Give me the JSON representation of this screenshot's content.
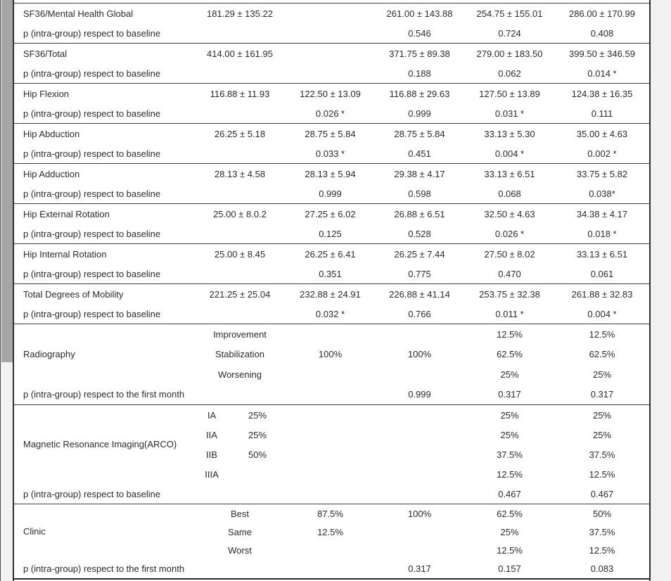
{
  "page": {
    "background": "#f1f1f1",
    "table_background": "#ffffff",
    "border_color": "#2f2f2f",
    "separator_color": "#3d3d3d",
    "text_color": "#2b2b2b",
    "scrollbar_track": "#f2f2f2",
    "scrollbar_thumb": "#a6a6a6"
  },
  "table": {
    "groups": [
      {
        "id": "sf36-mental-health",
        "type": "simple",
        "css": "g-simple",
        "label": "SF36/Mental Health Global",
        "values": [
          "181.29 ± 135.22",
          "",
          "261.00 ± 143.88",
          "254.75 ± 155.01",
          "286.00 ± 170.99"
        ],
        "p_label": "p (intra-group) respect to baseline",
        "p_values": [
          "",
          "",
          "0.546",
          "0.724",
          "0.408"
        ]
      },
      {
        "id": "sf36-total",
        "type": "simple",
        "css": "g-simple",
        "label": "SF36/Total",
        "values": [
          "414.00 ± 161.95",
          "",
          "371.75 ± 89.38",
          "279.00 ± 183.50",
          "399.50 ± 346.59"
        ],
        "p_label": "p (intra-group) respect to baseline",
        "p_values": [
          "",
          "",
          "0.188",
          "0.062",
          "0.014 *"
        ]
      },
      {
        "id": "hip-flexion",
        "type": "simple",
        "css": "g-simple",
        "label": "Hip Flexion",
        "values": [
          "116.88 ± 11.93",
          "122.50 ± 13.09",
          "116.88 ± 29.63",
          "127.50 ± 13.89",
          "124.38 ± 16.35"
        ],
        "p_label": "p (intra-group) respect to baseline",
        "p_values": [
          "",
          "0.026 *",
          "0.999",
          "0.031 *",
          "0.111"
        ]
      },
      {
        "id": "hip-abduction",
        "type": "simple",
        "css": "g-simple",
        "label": "Hip Abduction",
        "values": [
          "26.25 ± 5.18",
          "28.75 ± 5.84",
          "28.75 ± 5.84",
          "33.13 ± 5.30",
          "35.00 ± 4.63"
        ],
        "p_label": "p (intra-group) respect to baseline",
        "p_values": [
          "",
          "0.033 *",
          "0.451",
          "0.004 *",
          "0.002 *"
        ]
      },
      {
        "id": "hip-adduction",
        "type": "simple",
        "css": "g-simple",
        "label": "Hip Adduction",
        "values": [
          "28.13 ± 4.58",
          "28.13 ± 5.94",
          "29.38 ± 4.17",
          "33.13 ± 6.51",
          "33.75 ± 5.82"
        ],
        "p_label": "p (intra-group) respect to baseline",
        "p_values": [
          "",
          "0.999",
          "0.598",
          "0.068",
          "0.038*"
        ]
      },
      {
        "id": "hip-external-rotation",
        "type": "simple",
        "css": "g-simple",
        "label": "Hip External Rotation",
        "values": [
          "25.00 ± 8.0.2",
          "27.25 ± 6.02",
          "26.88 ± 6.51",
          "32.50 ± 4.63",
          "34.38 ± 4.17"
        ],
        "p_label": "p (intra-group) respect to baseline",
        "p_values": [
          "",
          "0.125",
          "0.528",
          "0.026 *",
          "0.018 *"
        ]
      },
      {
        "id": "hip-internal-rotation",
        "type": "simple",
        "css": "g-simple",
        "label": "Hip Internal Rotation",
        "values": [
          "25.00 ± 8.45",
          "26.25 ± 6.41",
          "26.25 ± 7.44",
          "27.50 ± 8.02",
          "33.13 ± 6.51"
        ],
        "p_label": "p (intra-group) respect to baseline",
        "p_values": [
          "",
          "0.351",
          "0.775",
          "0.470",
          "0.061"
        ]
      },
      {
        "id": "total-degrees-mobility",
        "type": "simple",
        "css": "g-simple",
        "label": "Total Degrees of Mobility",
        "values": [
          "221.25 ± 25.04",
          "232.88 ± 24.91",
          "226.88 ± 41.14",
          "253.75 ± 32.38",
          "261.88 ± 32.83"
        ],
        "p_label": "p (intra-group) respect to baseline",
        "p_values": [
          "",
          "0.032 *",
          "0.766",
          "0.011 *",
          "0.004 *"
        ]
      },
      {
        "id": "radiography",
        "type": "multi",
        "css": "g-rad",
        "grades": false,
        "label_lines": [
          "Radiography"
        ],
        "subrows": [
          {
            "sub": "Improvement",
            "v0": "",
            "vals": [
              "",
              "",
              "12.5%",
              "12.5%"
            ]
          },
          {
            "sub": "Stabilization",
            "v0": "",
            "vals": [
              "100%",
              "100%",
              "62.5%",
              "62.5%"
            ]
          },
          {
            "sub": "Worsening",
            "v0": "",
            "vals": [
              "",
              "",
              "25%",
              "25%"
            ]
          }
        ],
        "p_label": "p (intra-group) respect to the first month",
        "p_values": [
          "",
          "",
          "0.999",
          "0.317",
          "0.317"
        ]
      },
      {
        "id": "mri-arco",
        "type": "multi",
        "css": "g-mri",
        "grades": true,
        "label_lines": [
          "Magnetic Resonance Imaging",
          "(ARCO)"
        ],
        "subrows": [
          {
            "sub": "IA",
            "v0": "25%",
            "vals": [
              "",
              "",
              "25%",
              "25%"
            ]
          },
          {
            "sub": "IIA",
            "v0": "25%",
            "vals": [
              "",
              "",
              "25%",
              "25%"
            ]
          },
          {
            "sub": "IIB",
            "v0": "50%",
            "vals": [
              "",
              "",
              "37.5%",
              "37.5%"
            ]
          },
          {
            "sub": "IIIA",
            "v0": "",
            "vals": [
              "",
              "",
              "12.5%",
              "12.5%"
            ]
          }
        ],
        "p_label": "p (intra-group) respect to baseline",
        "p_values": [
          "",
          "",
          "",
          "0.467",
          "0.467"
        ]
      },
      {
        "id": "clinic",
        "type": "multi",
        "css": "g-clinic",
        "grades": false,
        "label_lines": [
          "Clinic"
        ],
        "subrows": [
          {
            "sub": "Best",
            "v0": "",
            "vals": [
              "87.5%",
              "100%",
              "62.5%",
              "50%"
            ]
          },
          {
            "sub": "Same",
            "v0": "",
            "vals": [
              "12.5%",
              "",
              "25%",
              "37.5%"
            ]
          },
          {
            "sub": "Worst",
            "v0": "",
            "vals": [
              "",
              "",
              "12.5%",
              "12.5%"
            ]
          }
        ],
        "p_label": "p (intra-group) respect to the first month",
        "p_values": [
          "",
          "",
          "0.317",
          "0.157",
          "0.083"
        ]
      }
    ]
  }
}
